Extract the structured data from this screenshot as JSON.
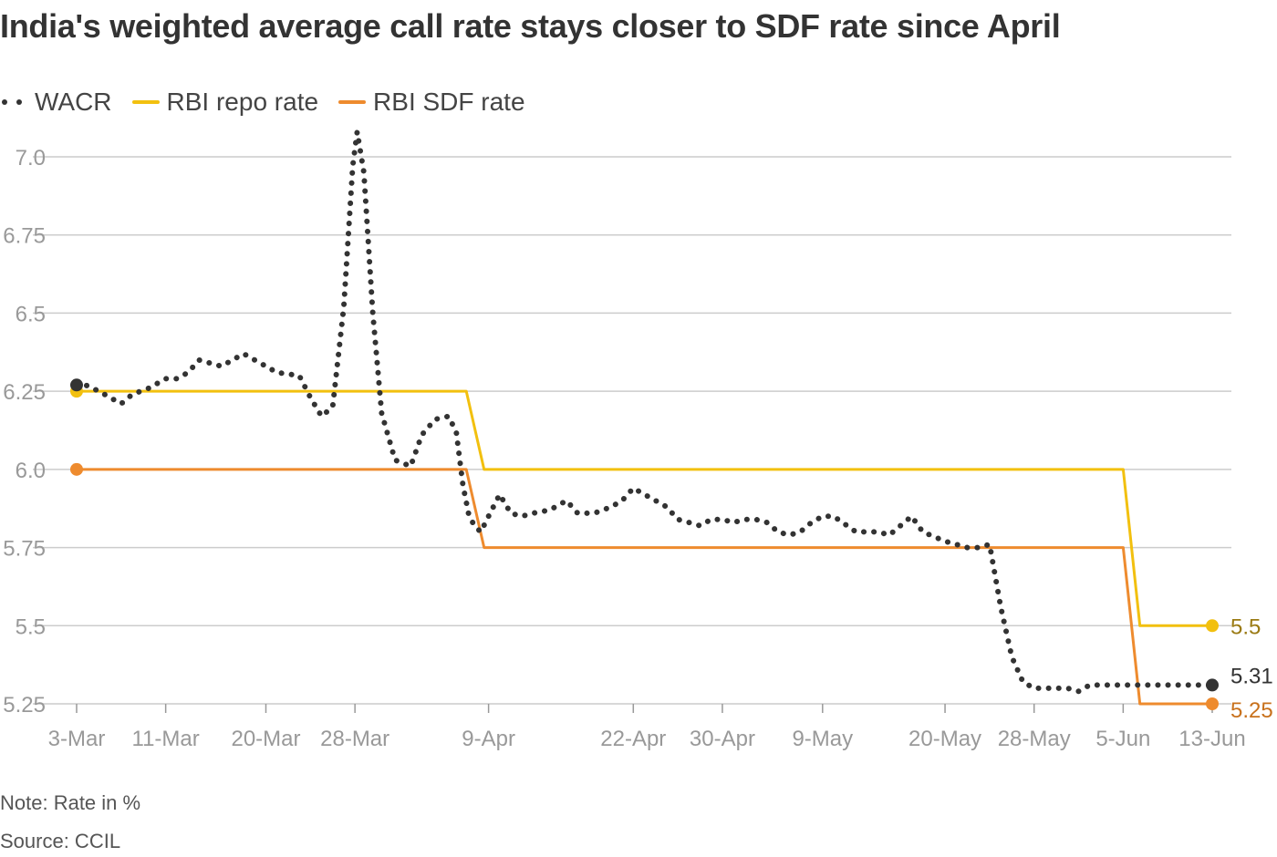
{
  "chart_data": {
    "type": "line",
    "title": "India's weighted average call rate stays closer to SDF rate since April",
    "note": "Note: Rate in %",
    "source": "Source: CCIL",
    "ylim": [
      5.25,
      7.0
    ],
    "yticks": [
      {
        "value": 7.0,
        "label": "7.0"
      },
      {
        "value": 6.75,
        "label": "6.75"
      },
      {
        "value": 6.5,
        "label": "6.5"
      },
      {
        "value": 6.25,
        "label": "6.25"
      },
      {
        "value": 6.0,
        "label": "6.0"
      },
      {
        "value": 5.75,
        "label": "5.75"
      },
      {
        "value": 5.5,
        "label": "5.5"
      },
      {
        "value": 5.25,
        "label": "5.25"
      }
    ],
    "xlim": [
      0,
      102
    ],
    "xticks": [
      {
        "day": 0,
        "label": "3-Mar"
      },
      {
        "day": 8,
        "label": "11-Mar"
      },
      {
        "day": 17,
        "label": "20-Mar"
      },
      {
        "day": 25,
        "label": "28-Mar"
      },
      {
        "day": 37,
        "label": "9-Apr"
      },
      {
        "day": 50,
        "label": "22-Apr"
      },
      {
        "day": 58,
        "label": "30-Apr"
      },
      {
        "day": 67,
        "label": "9-May"
      },
      {
        "day": 78,
        "label": "20-May"
      },
      {
        "day": 86,
        "label": "28-May"
      },
      {
        "day": 94,
        "label": "5-Jun"
      },
      {
        "day": 102,
        "label": "13-Jun"
      }
    ],
    "legend": [
      {
        "name": "WACR",
        "style": "dots"
      },
      {
        "name": "RBI repo rate",
        "style": "line"
      },
      {
        "name": "RBI SDF rate",
        "style": "line"
      }
    ],
    "colors": {
      "wacr": "#333333",
      "repo": "#F2C00F",
      "sdf": "#EE8B2E",
      "grid": "#cccccc",
      "axis_text": "#999999",
      "repo_label": "#9A7A13",
      "sdf_label": "#C8711C"
    },
    "series": [
      {
        "name": "WACR",
        "x": [
          0,
          0.8,
          2,
          3,
          4,
          5,
          6.5,
          8,
          9,
          10,
          11,
          12,
          13,
          15,
          16,
          17,
          18,
          20,
          21,
          22,
          23,
          24,
          24.8,
          25.2,
          25.8,
          26.6,
          27.4,
          28.6,
          30,
          31,
          32.2,
          33.4,
          34.1,
          34.7,
          35.2,
          35.7,
          36.3,
          37,
          38,
          39,
          40,
          41,
          42.5,
          44,
          45,
          46.5,
          48,
          49,
          50,
          51,
          52,
          53,
          54,
          55,
          56,
          57,
          58,
          59,
          60,
          61,
          62,
          63,
          64,
          65,
          66,
          67,
          68,
          70,
          71,
          72,
          73,
          74,
          75,
          76,
          78,
          79,
          80,
          81,
          82,
          83,
          84,
          85,
          86,
          87,
          88,
          89,
          90,
          91,
          92,
          93,
          94,
          94.6,
          95.2,
          95.8,
          96.4,
          97.2,
          98.5,
          100,
          101,
          102
        ],
        "values": [
          6.27,
          6.27,
          6.25,
          6.23,
          6.21,
          6.24,
          6.26,
          6.29,
          6.29,
          6.31,
          6.35,
          6.34,
          6.33,
          6.37,
          6.35,
          6.33,
          6.31,
          6.3,
          6.23,
          6.17,
          6.2,
          6.52,
          6.97,
          7.08,
          6.95,
          6.5,
          6.18,
          6.03,
          6.01,
          6.11,
          6.16,
          6.17,
          6.12,
          5.95,
          5.86,
          5.82,
          5.8,
          5.85,
          5.92,
          5.86,
          5.85,
          5.86,
          5.87,
          5.9,
          5.86,
          5.86,
          5.88,
          5.9,
          5.94,
          5.92,
          5.9,
          5.88,
          5.84,
          5.83,
          5.82,
          5.84,
          5.84,
          5.83,
          5.84,
          5.84,
          5.83,
          5.8,
          5.79,
          5.8,
          5.83,
          5.85,
          5.85,
          5.8,
          5.8,
          5.8,
          5.79,
          5.82,
          5.85,
          5.8,
          5.77,
          5.76,
          5.75,
          5.75,
          5.76,
          5.56,
          5.4,
          5.32,
          5.3,
          5.3,
          5.3,
          5.3,
          5.29,
          5.31,
          5.31,
          5.31,
          5.31,
          5.31,
          5.31,
          5.31,
          5.31,
          5.31,
          5.31,
          5.31,
          5.31,
          5.31
        ]
      },
      {
        "name": "RBI repo rate",
        "x": [
          0,
          35,
          36.6,
          94,
          95.5,
          102
        ],
        "values": [
          6.25,
          6.25,
          6.0,
          6.0,
          5.5,
          5.5
        ]
      },
      {
        "name": "RBI SDF rate",
        "x": [
          0,
          35,
          36.6,
          94,
          95.5,
          102
        ],
        "values": [
          6.0,
          6.0,
          5.75,
          5.75,
          5.25,
          5.25
        ]
      }
    ],
    "end_labels": [
      {
        "series": "RBI repo rate",
        "label": "5.5"
      },
      {
        "series": "WACR",
        "label": "5.31"
      },
      {
        "series": "RBI SDF rate",
        "label": "5.25"
      }
    ]
  }
}
